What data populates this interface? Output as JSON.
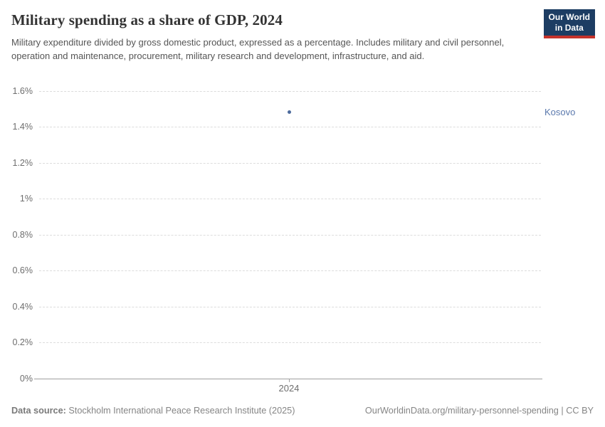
{
  "header": {
    "title": "Military spending as a share of GDP, 2024",
    "subtitle": "Military expenditure divided by gross domestic product, expressed as a percentage. Includes military and civil personnel, operation and maintenance, procurement, military research and development, infrastructure, and aid.",
    "logo": {
      "line1": "Our World",
      "line2": "in Data"
    }
  },
  "chart_data": {
    "type": "scatter",
    "title": "Military spending as a share of GDP, 2024",
    "xlabel": "",
    "ylabel": "",
    "ylim": [
      0,
      1.6
    ],
    "grid": "horizontal-dashed",
    "legend": "entity-label-right-of-plot",
    "yticks": [
      {
        "value": 0,
        "label": "0%"
      },
      {
        "value": 0.2,
        "label": "0.2%"
      },
      {
        "value": 0.4,
        "label": "0.4%"
      },
      {
        "value": 0.6,
        "label": "0.6%"
      },
      {
        "value": 0.8,
        "label": "0.8%"
      },
      {
        "value": 1,
        "label": "1%"
      },
      {
        "value": 1.2,
        "label": "1.2%"
      },
      {
        "value": 1.4,
        "label": "1.4%"
      },
      {
        "value": 1.6,
        "label": "1.6%"
      }
    ],
    "xticks": [
      {
        "value": 2024,
        "label": "2024"
      }
    ],
    "series": [
      {
        "name": "Kosovo",
        "x": [
          2024
        ],
        "y": [
          1.48
        ],
        "point_color": "#4c6a9c",
        "label_color": "#5b79ad"
      }
    ]
  },
  "footer": {
    "source_label": "Data source:",
    "source_text": "Stockholm International Peace Research Institute (2025)",
    "url": "OurWorldinData.org/military-personnel-spending",
    "separator": " | ",
    "license": "CC BY"
  },
  "colors": {
    "brand_navy": "#1d3d63",
    "brand_red": "#c5332b",
    "series_blue": "#4c6a9c",
    "gridline": "#dcdcdc",
    "axis": "#a0a0a0",
    "text_dark": "#333333",
    "text_gray": "#555555",
    "text_light": "#858585"
  }
}
